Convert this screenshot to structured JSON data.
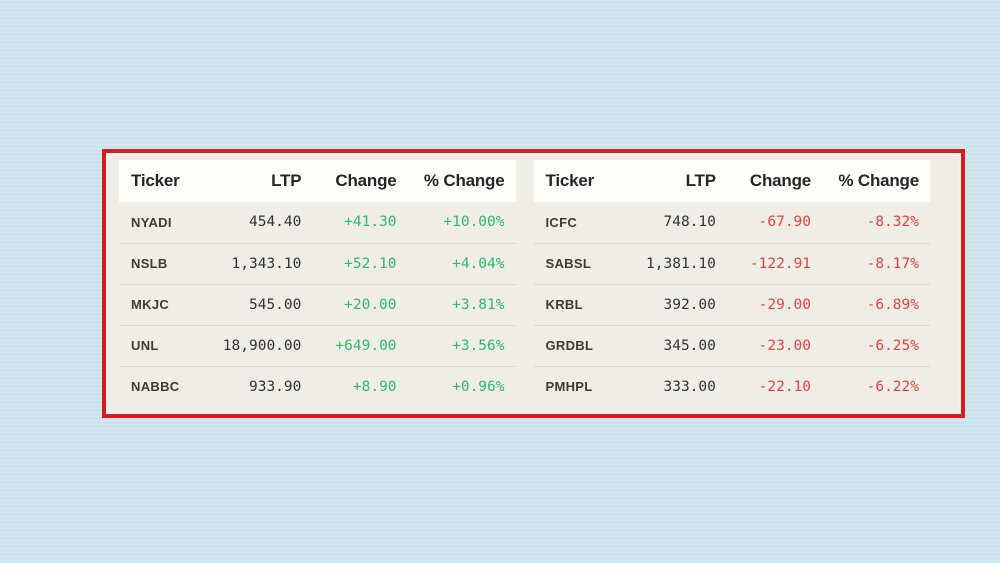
{
  "page": {
    "background": "#cee4ec"
  },
  "annotation": {
    "shape": "rectangle-highlight",
    "border_color": "#de1b1b"
  },
  "panel": {
    "background": "#f0ede6",
    "header_background": "#fffef9",
    "separator_color": "#dbd8d0"
  },
  "colors": {
    "positive": "#2eb96e",
    "negative": "#e8433d",
    "header_text": "#26262a",
    "ticker_text": "#3c3b37",
    "number_text": "#303338"
  },
  "tables": [
    {
      "id": "top-gainers",
      "headers": [
        "Ticker",
        "LTP",
        "Change",
        "% Change"
      ],
      "rows": [
        {
          "ticker": "NYADI",
          "ltp": "454.40",
          "change": "+41.30",
          "pct_change": "+10.00%",
          "direction": "up"
        },
        {
          "ticker": "NSLB",
          "ltp": "1,343.10",
          "change": "+52.10",
          "pct_change": "+4.04%",
          "direction": "up"
        },
        {
          "ticker": "MKJC",
          "ltp": "545.00",
          "change": "+20.00",
          "pct_change": "+3.81%",
          "direction": "up"
        },
        {
          "ticker": "UNL",
          "ltp": "18,900.00",
          "change": "+649.00",
          "pct_change": "+3.56%",
          "direction": "up"
        },
        {
          "ticker": "NABBC",
          "ltp": "933.90",
          "change": "+8.90",
          "pct_change": "+0.96%",
          "direction": "up"
        }
      ]
    },
    {
      "id": "top-losers",
      "headers": [
        "Ticker",
        "LTP",
        "Change",
        "% Change"
      ],
      "rows": [
        {
          "ticker": "ICFC",
          "ltp": "748.10",
          "change": "-67.90",
          "pct_change": "-8.32%",
          "direction": "down"
        },
        {
          "ticker": "SABSL",
          "ltp": "1,381.10",
          "change": "-122.91",
          "pct_change": "-8.17%",
          "direction": "down"
        },
        {
          "ticker": "KRBL",
          "ltp": "392.00",
          "change": "-29.00",
          "pct_change": "-6.89%",
          "direction": "down"
        },
        {
          "ticker": "GRDBL",
          "ltp": "345.00",
          "change": "-23.00",
          "pct_change": "-6.25%",
          "direction": "down"
        },
        {
          "ticker": "PMHPL",
          "ltp": "333.00",
          "change": "-22.10",
          "pct_change": "-6.22%",
          "direction": "down"
        }
      ]
    }
  ]
}
